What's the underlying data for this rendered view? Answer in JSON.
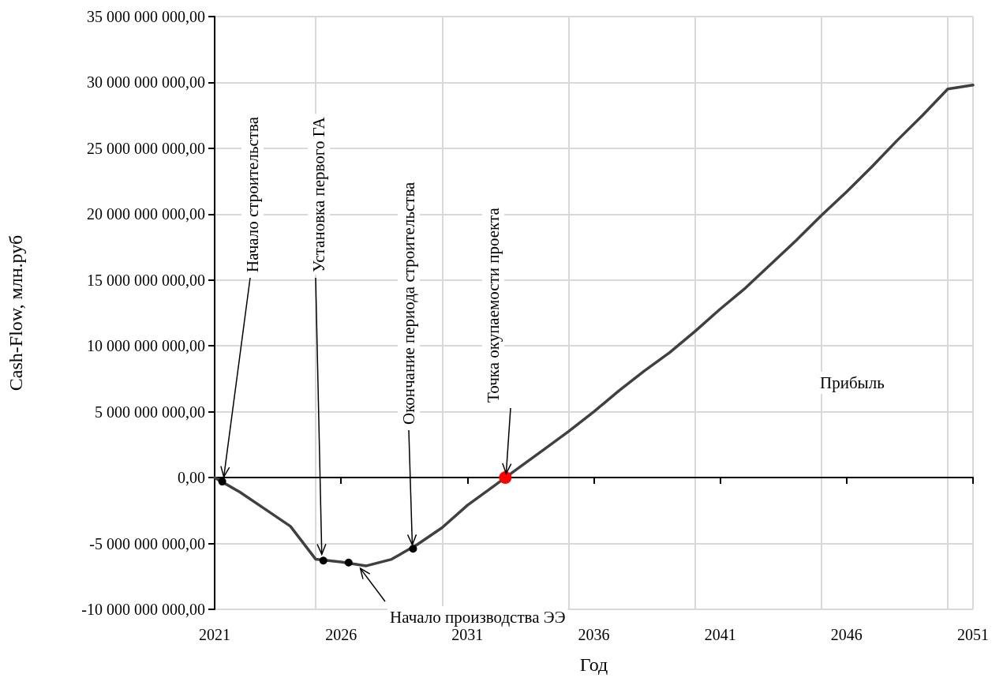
{
  "chart_data": {
    "type": "line",
    "xlabel": "Год",
    "ylabel": "Cash-Flow, млн.руб",
    "xlim": [
      2021,
      2051
    ],
    "xticks": [
      2021,
      2026,
      2031,
      2036,
      2041,
      2046,
      2051
    ],
    "ylim": [
      -10000000000,
      35000000000
    ],
    "yticks": [
      {
        "value": -10000000000,
        "label": "-10 000 000 000,00"
      },
      {
        "value": -5000000000,
        "label": "-5 000 000 000,00"
      },
      {
        "value": 0,
        "label": "0,00"
      },
      {
        "value": 5000000000,
        "label": "5 000 000 000,00"
      },
      {
        "value": 10000000000,
        "label": "10 000 000 000,00"
      },
      {
        "value": 15000000000,
        "label": "15 000 000 000,00"
      },
      {
        "value": 20000000000,
        "label": "20 000 000 000,00"
      },
      {
        "value": 25000000000,
        "label": "25 000 000 000,00"
      },
      {
        "value": 30000000000,
        "label": "30 000 000 000,00"
      },
      {
        "value": 35000000000,
        "label": "35 000 000 000,00"
      }
    ],
    "grid": true,
    "series": [
      {
        "color": "#404040",
        "marker": "none",
        "line_style": "solid",
        "x": [
          2021,
          2022,
          2023,
          2024,
          2025,
          2026,
          2027,
          2028,
          2029,
          2030,
          2031,
          2032,
          2033,
          2034,
          2035,
          2036,
          2037,
          2038,
          2039,
          2040,
          2041,
          2042,
          2043,
          2044,
          2045,
          2046,
          2047,
          2048,
          2049,
          2050,
          2051
        ],
        "values": [
          0,
          -1100000000,
          -2400000000,
          -3700000000,
          -6200000000,
          -6400000000,
          -6700000000,
          -6200000000,
          -5100000000,
          -3800000000,
          -2100000000,
          -700000000,
          700000000,
          2100000000,
          3500000000,
          5000000000,
          6600000000,
          8100000000,
          9500000000,
          11100000000,
          12800000000,
          14400000000,
          16200000000,
          18000000000,
          19900000000,
          21700000000,
          23600000000,
          25600000000,
          27500000000,
          29500000000,
          29800000000
        ]
      },
      {
        "type": "scatter",
        "color": "#000000",
        "marker": "circle",
        "x": [
          2021.3,
          2025.3,
          2026.3,
          2028.85
        ],
        "values": [
          -300000000,
          -6300000000,
          -6450000000,
          -5400000000
        ]
      },
      {
        "type": "scatter",
        "color": "#ff0000",
        "marker": "circle",
        "x": [
          2032.5
        ],
        "values": [
          0
        ]
      }
    ],
    "annotations": [
      {
        "text": "Начало строительства",
        "x": 2021.3,
        "y": -300000000
      },
      {
        "text": "Установка первого ГА",
        "x": 2025.3,
        "y": -6300000000
      },
      {
        "text": "Окончание периода строительства",
        "x": 2028.85,
        "y": -5400000000
      },
      {
        "text": "Точка окупаемости проекта",
        "x": 2032.5,
        "y": 0
      },
      {
        "text": "Начало производства ЭЭ",
        "x": 2026.7,
        "y": -6650000000
      },
      "Прибыль"
    ]
  }
}
